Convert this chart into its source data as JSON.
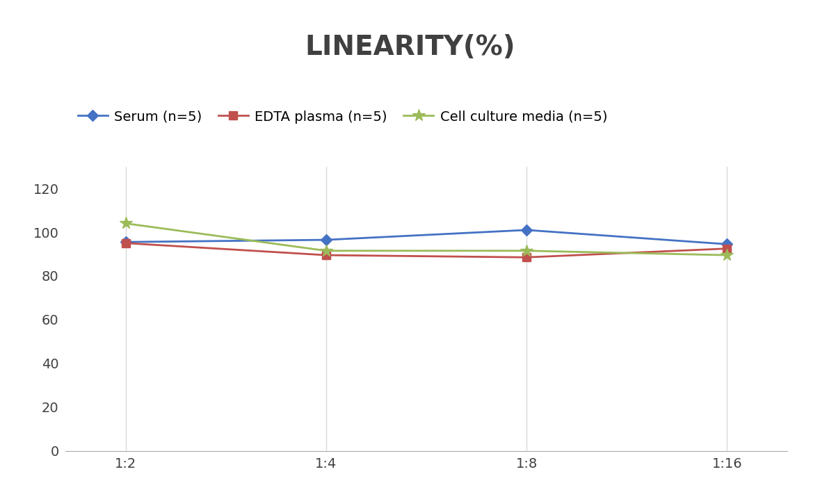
{
  "title": "LINEARITY(%)",
  "title_fontsize": 28,
  "title_fontweight": "bold",
  "title_color": "#404040",
  "x_labels": [
    "1:2",
    "1:4",
    "1:8",
    "1:16"
  ],
  "x_values": [
    0,
    1,
    2,
    3
  ],
  "series": [
    {
      "label": "Serum (n=5)",
      "values": [
        95.5,
        96.5,
        101.0,
        94.5
      ],
      "color": "#4472C4",
      "marker": "D",
      "marker_size": 8,
      "linewidth": 2.0
    },
    {
      "label": "EDTA plasma (n=5)",
      "values": [
        95.0,
        89.5,
        88.5,
        92.5
      ],
      "color": "#C0504D",
      "marker": "s",
      "marker_size": 8,
      "linewidth": 2.0
    },
    {
      "label": "Cell culture media (n=5)",
      "values": [
        104.0,
        91.5,
        91.5,
        89.5
      ],
      "color": "#9BBB59",
      "marker": "*",
      "marker_size": 13,
      "linewidth": 2.0
    }
  ],
  "ylim": [
    0,
    130
  ],
  "yticks": [
    0,
    20,
    40,
    60,
    80,
    100,
    120
  ],
  "grid_color": "#D9D9D9",
  "background_color": "#FFFFFF",
  "legend_fontsize": 14,
  "tick_fontsize": 14
}
